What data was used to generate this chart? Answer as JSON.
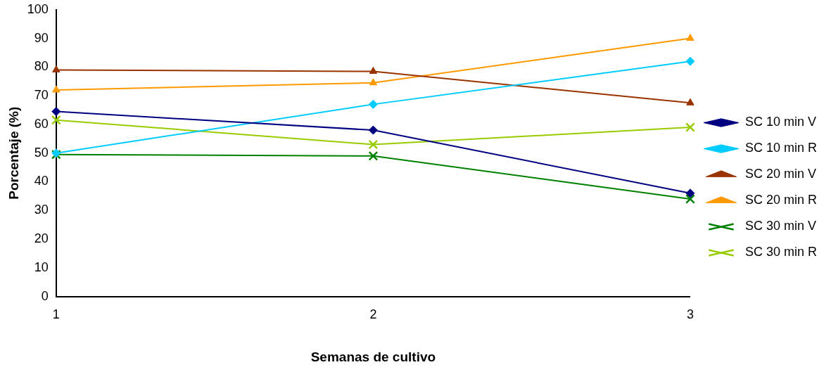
{
  "chart_data": {
    "type": "line",
    "xlabel": "Semanas de cultivo",
    "ylabel": "Porcentaje (%)",
    "categories": [
      "1",
      "2",
      "3"
    ],
    "ylim": [
      0,
      100
    ],
    "yticks": [
      0,
      10,
      20,
      30,
      40,
      50,
      60,
      70,
      80,
      90,
      100
    ],
    "grid": false,
    "legend": "right",
    "series": [
      {
        "name": "SC 10 min V",
        "color": "#000080",
        "marker": "diamond",
        "values": [
          64.5,
          58,
          36
        ]
      },
      {
        "name": "SC 10 min R",
        "color": "#00ccff",
        "marker": "diamond",
        "values": [
          50,
          67,
          82
        ]
      },
      {
        "name": "SC 20 min V",
        "color": "#993300",
        "marker": "triangle",
        "values": [
          79,
          78.5,
          67.5
        ]
      },
      {
        "name": "SC 20 min R",
        "color": "#ff9900",
        "marker": "triangle",
        "values": [
          72,
          74.5,
          90
        ]
      },
      {
        "name": "SC 30 min V",
        "color": "#008000",
        "marker": "cross",
        "values": [
          49.5,
          49,
          34
        ]
      },
      {
        "name": "SC 30 min R",
        "color": "#99cc00",
        "marker": "cross",
        "values": [
          61.5,
          53,
          59
        ]
      }
    ]
  }
}
